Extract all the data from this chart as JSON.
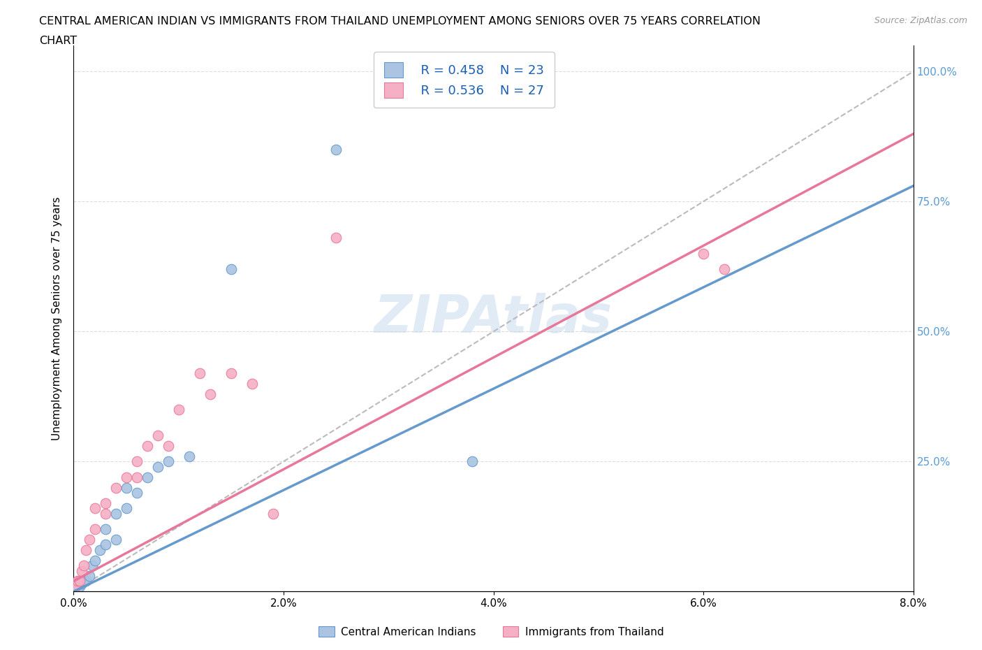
{
  "title_line1": "CENTRAL AMERICAN INDIAN VS IMMIGRANTS FROM THAILAND UNEMPLOYMENT AMONG SENIORS OVER 75 YEARS CORRELATION",
  "title_line2": "CHART",
  "source": "Source: ZipAtlas.com",
  "ylabel": "Unemployment Among Seniors over 75 years",
  "x_min": 0.0,
  "x_max": 0.08,
  "y_min": 0.0,
  "y_max": 1.05,
  "x_ticks": [
    0.0,
    0.02,
    0.04,
    0.06,
    0.08
  ],
  "x_tick_labels": [
    "0.0%",
    "2.0%",
    "4.0%",
    "6.0%",
    "8.0%"
  ],
  "y_tick_vals": [
    0.0,
    0.25,
    0.5,
    0.75,
    1.0
  ],
  "y_tick_labels_right": [
    "",
    "25.0%",
    "50.0%",
    "75.0%",
    "100.0%"
  ],
  "legend_r1": "R = 0.458",
  "legend_n1": "N = 23",
  "legend_r2": "R = 0.536",
  "legend_n2": "N = 27",
  "color_blue": "#aac4e2",
  "color_pink": "#f5b0c5",
  "line_blue": "#6699cc",
  "line_pink": "#e87899",
  "line_gray": "#bbbbbb",
  "watermark": "ZIPAtlas",
  "blue_scatter_x": [
    0.0003,
    0.0006,
    0.0008,
    0.001,
    0.0012,
    0.0015,
    0.0018,
    0.002,
    0.0025,
    0.003,
    0.003,
    0.004,
    0.004,
    0.005,
    0.005,
    0.006,
    0.007,
    0.008,
    0.009,
    0.011,
    0.015,
    0.025,
    0.038
  ],
  "blue_scatter_y": [
    0.01,
    0.01,
    0.015,
    0.02,
    0.02,
    0.03,
    0.05,
    0.06,
    0.08,
    0.09,
    0.12,
    0.1,
    0.15,
    0.16,
    0.2,
    0.19,
    0.22,
    0.24,
    0.25,
    0.26,
    0.62,
    0.85,
    0.25
  ],
  "pink_scatter_x": [
    0.0002,
    0.0004,
    0.0006,
    0.0008,
    0.001,
    0.0012,
    0.0015,
    0.002,
    0.002,
    0.003,
    0.003,
    0.004,
    0.005,
    0.006,
    0.006,
    0.007,
    0.008,
    0.009,
    0.01,
    0.012,
    0.013,
    0.015,
    0.017,
    0.019,
    0.025,
    0.06,
    0.062
  ],
  "pink_scatter_y": [
    0.01,
    0.02,
    0.02,
    0.04,
    0.05,
    0.08,
    0.1,
    0.12,
    0.16,
    0.15,
    0.17,
    0.2,
    0.22,
    0.22,
    0.25,
    0.28,
    0.3,
    0.28,
    0.35,
    0.42,
    0.38,
    0.42,
    0.4,
    0.15,
    0.68,
    0.65,
    0.62
  ],
  "blue_line_x": [
    0.0,
    0.08
  ],
  "blue_line_y": [
    0.0,
    0.78
  ],
  "pink_line_x": [
    0.0,
    0.08
  ],
  "pink_line_y": [
    0.02,
    0.88
  ],
  "gray_line_x": [
    0.0,
    0.08
  ],
  "gray_line_y": [
    0.0,
    1.0
  ]
}
